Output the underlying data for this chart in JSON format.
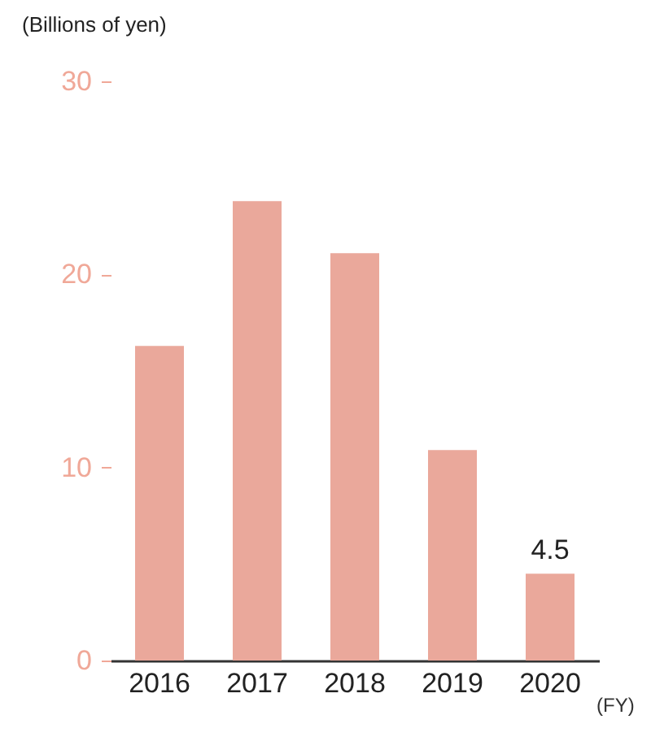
{
  "chart_data": {
    "type": "bar",
    "ylabel": "(Billions of yen)",
    "xlabel": "(FY)",
    "categories": [
      "2016",
      "2017",
      "2018",
      "2019",
      "2020"
    ],
    "values": [
      16.3,
      23.8,
      21.1,
      10.9,
      4.5
    ],
    "value_labels": [
      null,
      null,
      null,
      null,
      "4.5"
    ],
    "color": "#eaa89b",
    "ylim": [
      0,
      30
    ],
    "yticks": [
      0,
      10,
      20,
      30
    ],
    "grid": false
  }
}
